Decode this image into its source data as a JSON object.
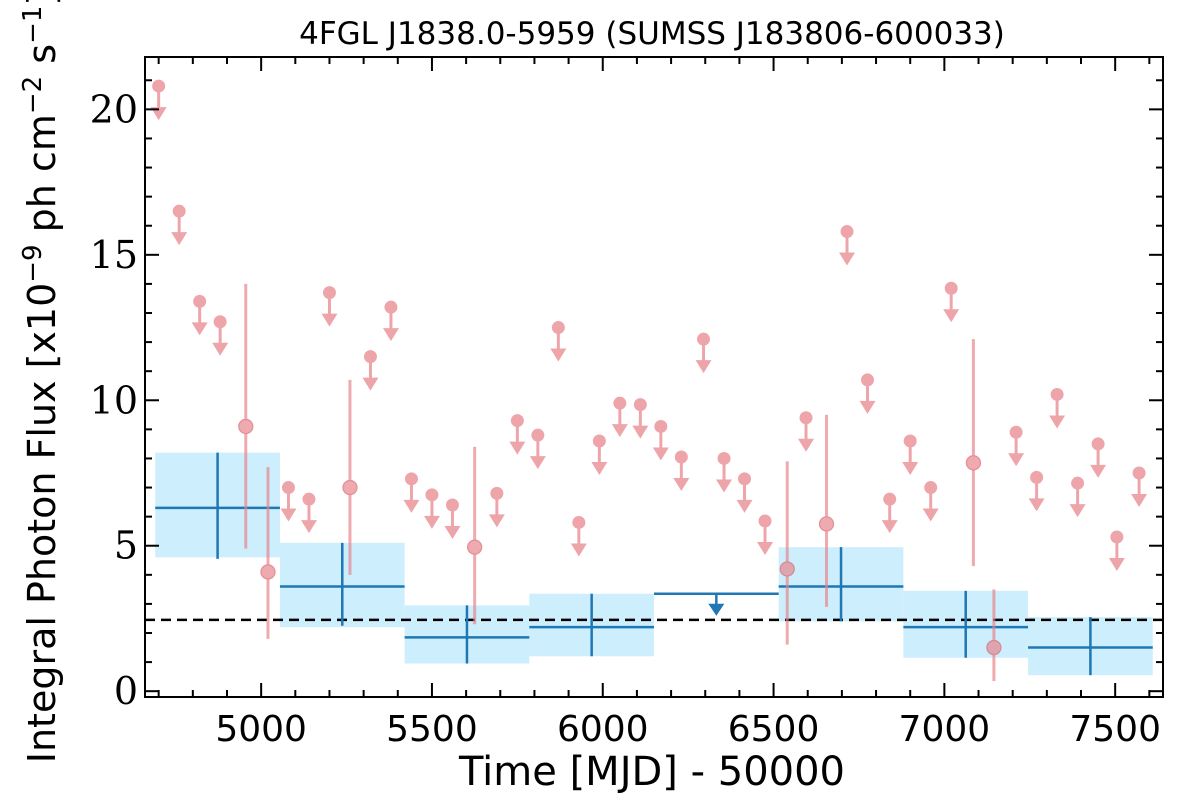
{
  "chart_data": {
    "type": "scatter",
    "title": "4FGL J1838.0-5959 (SUMSS J183806-600033)",
    "xlabel": "Time [MJD] - 50000",
    "ylabel": "Integral Photon Flux [x10",
    "ylabel_exp": "−9",
    "ylabel_mid": " ph cm",
    "ylabel_exp2": "−2",
    "ylabel_end": " s",
    "ylabel_exp3": "−1",
    "ylabel_close": "]",
    "xlim": [
      4660,
      7640
    ],
    "ylim": [
      -0.2,
      21.8
    ],
    "xticks": [
      "5000",
      "5500",
      "6000",
      "6500",
      "7000",
      "7500"
    ],
    "yticks": [
      "0",
      "5",
      "10",
      "15",
      "20"
    ],
    "mean_flux": 2.45,
    "colors": {
      "band_fill": "#cdeefc",
      "band_line": "#1f77b4",
      "points": "#e8838a",
      "mean_line": "#000000"
    },
    "binned": [
      {
        "x0": 4690,
        "x1": 5055,
        "y": 6.3,
        "ylo": 4.6,
        "yhi": 8.2,
        "emin": 4.55,
        "emax": 8.2
      },
      {
        "x0": 5055,
        "x1": 5420,
        "y": 3.6,
        "ylo": 2.2,
        "yhi": 5.1,
        "emin": 2.25,
        "emax": 5.1
      },
      {
        "x0": 5420,
        "x1": 5785,
        "y": 1.85,
        "ylo": 0.95,
        "yhi": 2.95,
        "emin": 0.95,
        "emax": 2.95
      },
      {
        "x0": 5785,
        "x1": 6150,
        "y": 2.2,
        "ylo": 1.2,
        "yhi": 3.35,
        "emin": 1.2,
        "emax": 3.35
      },
      {
        "x0": 6150,
        "x1": 6515,
        "y": 3.35,
        "upper_limit": true
      },
      {
        "x0": 6515,
        "x1": 6880,
        "y": 3.6,
        "ylo": 2.4,
        "yhi": 4.95,
        "emin": 2.4,
        "emax": 4.95
      },
      {
        "x0": 6880,
        "x1": 7245,
        "y": 2.2,
        "ylo": 1.15,
        "yhi": 3.45,
        "emin": 1.15,
        "emax": 3.45
      },
      {
        "x0": 7245,
        "x1": 7610,
        "y": 1.5,
        "ylo": 0.55,
        "yhi": 2.55,
        "emin": 0.55,
        "emax": 2.55
      }
    ],
    "upper_limits": [
      [
        4700,
        20.8
      ],
      [
        4760,
        16.5
      ],
      [
        4820,
        13.4
      ],
      [
        4880,
        12.7
      ],
      [
        5080,
        7.0
      ],
      [
        5140,
        6.6
      ],
      [
        5200,
        13.7
      ],
      [
        5320,
        11.5
      ],
      [
        5380,
        13.2
      ],
      [
        5440,
        7.3
      ],
      [
        5500,
        6.75
      ],
      [
        5560,
        6.4
      ],
      [
        5690,
        6.8
      ],
      [
        5750,
        9.3
      ],
      [
        5810,
        8.8
      ],
      [
        5870,
        12.5
      ],
      [
        5930,
        5.8
      ],
      [
        5990,
        8.6
      ],
      [
        6050,
        9.9
      ],
      [
        6110,
        9.85
      ],
      [
        6170,
        9.1
      ],
      [
        6230,
        8.05
      ],
      [
        6295,
        12.1
      ],
      [
        6355,
        8.0
      ],
      [
        6415,
        7.3
      ],
      [
        6475,
        5.85
      ],
      [
        6595,
        9.4
      ],
      [
        6715,
        15.8
      ],
      [
        6775,
        10.7
      ],
      [
        6840,
        6.6
      ],
      [
        6900,
        8.6
      ],
      [
        6960,
        7.0
      ],
      [
        7020,
        13.85
      ],
      [
        7210,
        8.9
      ],
      [
        7270,
        7.35
      ],
      [
        7330,
        10.2
      ],
      [
        7390,
        7.15
      ],
      [
        7450,
        8.5
      ],
      [
        7505,
        5.3
      ],
      [
        7570,
        7.5
      ]
    ],
    "detections": [
      {
        "x": 4955,
        "y": 9.1,
        "lo": 4.9,
        "hi": 14.0
      },
      {
        "x": 5020,
        "y": 4.1,
        "lo": 1.8,
        "hi": 7.7
      },
      {
        "x": 5260,
        "y": 7.0,
        "lo": 4.0,
        "hi": 10.7
      },
      {
        "x": 5625,
        "y": 4.95,
        "lo": 2.3,
        "hi": 8.4
      },
      {
        "x": 6540,
        "y": 4.2,
        "lo": 1.6,
        "hi": 7.9
      },
      {
        "x": 6655,
        "y": 5.75,
        "lo": 2.9,
        "hi": 9.5
      },
      {
        "x": 7085,
        "y": 7.85,
        "lo": 4.3,
        "hi": 12.1
      },
      {
        "x": 7145,
        "y": 1.5,
        "lo": 0.35,
        "hi": 3.5
      }
    ]
  }
}
